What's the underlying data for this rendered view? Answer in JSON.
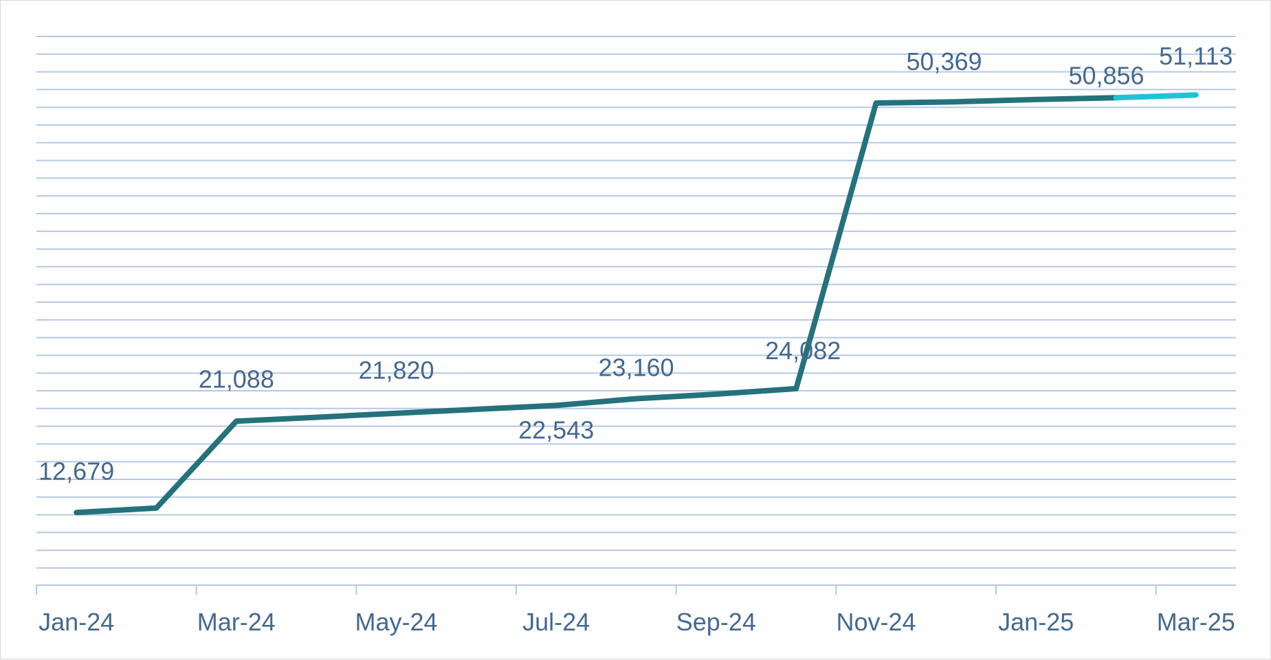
{
  "chart_data": {
    "type": "line",
    "title": "",
    "xlabel": "",
    "ylabel": "",
    "x": [
      "Jan-24",
      "Feb-24",
      "Mar-24",
      "Apr-24",
      "May-24",
      "Jun-24",
      "Jul-24",
      "Aug-24",
      "Sep-24",
      "Oct-24",
      "Nov-24",
      "Dec-24",
      "Jan-25",
      "Feb-25",
      "Mar-25"
    ],
    "x_tick_labels": [
      "Jan-24",
      "Mar-24",
      "May-24",
      "Jul-24",
      "Sep-24",
      "Nov-24",
      "Jan-25",
      "Mar-25"
    ],
    "series": [
      {
        "values": [
          12679,
          13100,
          21088,
          21450,
          21820,
          22180,
          22543,
          23160,
          23580,
          24082,
          50369,
          50480,
          50690,
          50856,
          51113
        ],
        "labeled_indices": [
          0,
          2,
          4,
          6,
          7,
          9,
          10,
          13,
          14
        ],
        "color": "#24727b",
        "last_segment_color": "#1ec3d6"
      }
    ],
    "ylim": [
      6000,
      56500
    ],
    "grid": true,
    "legend": "none",
    "colors": {
      "line": "#24727b",
      "last_segment": "#1ec3d6",
      "grid": "#b4c7e7",
      "label": "#44688f"
    }
  }
}
